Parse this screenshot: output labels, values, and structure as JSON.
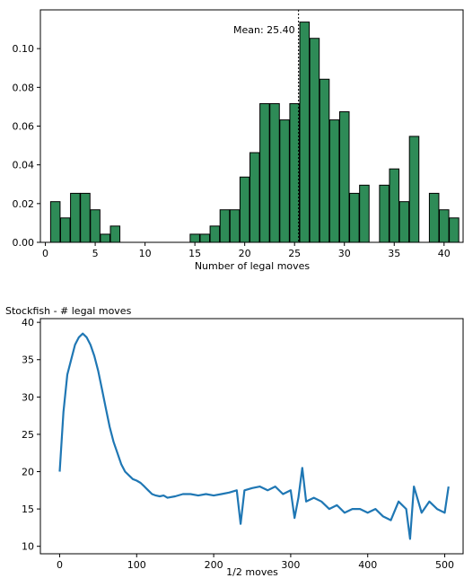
{
  "chart_data": [
    {
      "type": "bar",
      "title": "",
      "xlabel": "Number of legal moves",
      "ylabel": "",
      "xlim": [
        -0.5,
        42.0
      ],
      "ylim": [
        0,
        0.12
      ],
      "xticks": [
        0,
        5,
        10,
        15,
        20,
        25,
        30,
        35,
        40
      ],
      "yticks": [
        0.0,
        0.02,
        0.04,
        0.06,
        0.08,
        0.1
      ],
      "ytick_labels": [
        "0.00",
        "0.02",
        "0.04",
        "0.06",
        "0.08",
        "0.10"
      ],
      "bar_color": "#2e8b57",
      "edge_color": "#000000",
      "x": [
        1,
        2,
        3,
        4,
        5,
        6,
        7,
        15,
        16,
        17,
        18,
        19,
        20,
        21,
        22,
        23,
        24,
        25,
        26,
        27,
        28,
        29,
        30,
        31,
        32,
        33,
        34,
        35,
        36,
        37,
        38,
        39,
        40,
        41
      ],
      "values": [
        0.021,
        0.0126,
        0.0253,
        0.0253,
        0.0168,
        0.0042,
        0.0084,
        0.0042,
        0.0042,
        0.0084,
        0.0168,
        0.0168,
        0.0337,
        0.0463,
        0.0716,
        0.0716,
        0.0632,
        0.0716,
        0.1137,
        0.1053,
        0.0842,
        0.0632,
        0.0674,
        0.0253,
        0.0295,
        0.0,
        0.0295,
        0.0379,
        0.021,
        0.0547,
        0.0,
        0.0253,
        0.0168,
        0.0126
      ],
      "mean_line": {
        "value": 25.4,
        "label": "Mean: 25.40"
      }
    },
    {
      "type": "line",
      "title": "Stockfish - # legal moves",
      "xlabel": "1/2 moves",
      "ylabel": "",
      "xlim": [
        -25,
        525
      ],
      "ylim": [
        9,
        40.5
      ],
      "xticks": [
        0,
        100,
        200,
        300,
        400,
        500
      ],
      "yticks": [
        10,
        15,
        20,
        25,
        30,
        35,
        40
      ],
      "line_color": "#1f77b4",
      "series": [
        {
          "x": [
            0,
            5,
            10,
            15,
            20,
            25,
            30,
            35,
            40,
            45,
            50,
            55,
            60,
            65,
            70,
            75,
            80,
            85,
            90,
            95,
            100,
            105,
            110,
            115,
            120,
            125,
            130,
            135,
            140,
            150,
            160,
            170,
            180,
            190,
            200,
            210,
            220,
            230,
            235,
            240,
            250,
            260,
            270,
            280,
            290,
            300,
            305,
            310,
            315,
            320,
            330,
            340,
            350,
            360,
            370,
            380,
            390,
            400,
            410,
            420,
            430,
            440,
            450,
            455,
            460,
            470,
            480,
            490,
            500,
            505
          ],
          "values": [
            20,
            28,
            33,
            35,
            37,
            38,
            38.5,
            38,
            37,
            35.5,
            33.5,
            31,
            28.5,
            26,
            24,
            22.5,
            21,
            20,
            19.5,
            19,
            18.8,
            18.5,
            18,
            17.5,
            17,
            16.8,
            16.7,
            16.8,
            16.5,
            16.7,
            17,
            17,
            16.8,
            17,
            16.8,
            17,
            17.2,
            17.5,
            13,
            17.5,
            17.8,
            18,
            17.5,
            18,
            17,
            17.5,
            13.8,
            16.5,
            20.5,
            16,
            16.5,
            16,
            15,
            15.5,
            14.5,
            15,
            15,
            14.5,
            15,
            14,
            13.5,
            16,
            15,
            11,
            18,
            14.5,
            16,
            15,
            14.5,
            18
          ]
        }
      ]
    }
  ]
}
